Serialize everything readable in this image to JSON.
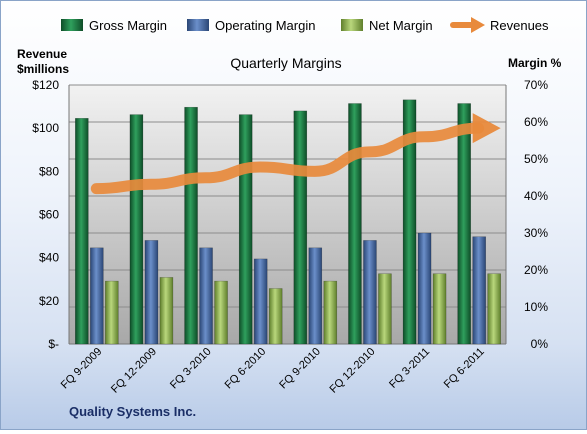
{
  "chart_data": {
    "type": "bar",
    "title": "Quarterly Margins",
    "company": "Quality Systems Inc.",
    "categories": [
      "FQ 9-2009",
      "FQ 12-2009",
      "FQ 3-2010",
      "FQ 6-2010",
      "FQ 9-2010",
      "FQ 12-2010",
      "FQ 3-2011",
      "FQ 6-2011"
    ],
    "series": [
      {
        "name": "Gross Margin",
        "type": "bar",
        "axis": "right",
        "color": "#1f7a45",
        "values": [
          61,
          62,
          64,
          62,
          63,
          65,
          66,
          65
        ]
      },
      {
        "name": "Operating Margin",
        "type": "bar",
        "axis": "right",
        "color": "#4a6fa8",
        "values": [
          26,
          28,
          26,
          23,
          26,
          28,
          30,
          29
        ]
      },
      {
        "name": "Net Margin",
        "type": "bar",
        "axis": "right",
        "color": "#9bbf5a",
        "values": [
          17,
          18,
          17,
          15,
          17,
          19,
          19,
          19
        ]
      },
      {
        "name": "Revenues",
        "type": "line",
        "axis": "left",
        "color": "#e88a3c",
        "values": [
          72,
          74,
          77,
          82,
          80,
          89,
          96,
          100
        ]
      }
    ],
    "left_axis": {
      "label_line1": "Revenue",
      "label_line2": "$millions",
      "ticks": [
        "$-",
        "$20",
        "$40",
        "$60",
        "$80",
        "$100",
        "$120"
      ],
      "min": 0,
      "max": 120
    },
    "right_axis": {
      "label": "Margin %",
      "ticks": [
        "0%",
        "10%",
        "20%",
        "30%",
        "40%",
        "50%",
        "60%",
        "70%"
      ],
      "min": 0,
      "max": 70
    },
    "legend_position": "top",
    "grid": true
  }
}
